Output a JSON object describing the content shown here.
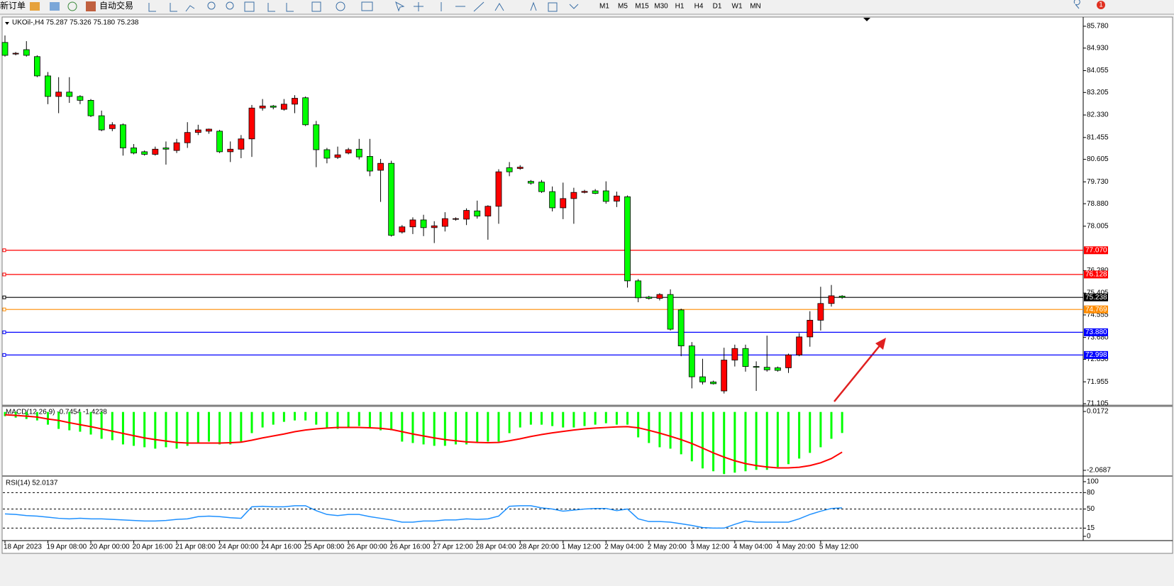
{
  "toolbar": {
    "new_order": "新订单",
    "auto_trading": "自动交易",
    "timeframes": [
      "M1",
      "M5",
      "M15",
      "M30",
      "H1",
      "H4",
      "D1",
      "W1",
      "MN"
    ],
    "badge": "1"
  },
  "chart_data": [
    {
      "type": "candlestick",
      "title": "UKOil-,H4 75.287 75.326 75.180 75.238",
      "categories": [
        "18 Apr 2023",
        null,
        null,
        null,
        "19 Apr 08:00",
        null,
        null,
        null,
        "20 Apr 00:00",
        null,
        null,
        null,
        "20 Apr 16:00",
        null,
        null,
        null,
        "21 Apr 08:00",
        null,
        null,
        null,
        "24 Apr 00:00",
        null,
        null,
        null,
        "24 Apr 16:00",
        null,
        null,
        null,
        "25 Apr 08:00",
        null,
        null,
        null,
        "26 Apr 00:00",
        null,
        null,
        null,
        "26 Apr 16:00",
        null,
        null,
        null,
        "27 Apr 12:00",
        null,
        null,
        null,
        "28 Apr 04:00",
        null,
        null,
        null,
        "28 Apr 20:00",
        null,
        null,
        null,
        "1 May 12:00",
        null,
        null,
        null,
        "2 May 04:00",
        null,
        null,
        null,
        "2 May 20:00",
        null,
        null,
        null,
        "3 May 12:00",
        null,
        null,
        null,
        "4 May 04:00",
        null,
        null,
        null,
        "4 May 20:00",
        null,
        null,
        null,
        "5 May 12:00",
        null,
        null
      ],
      "open": [
        85.15,
        84.7,
        84.87,
        84.6,
        83.85,
        83.05,
        83.22,
        83.05,
        82.9,
        82.3,
        81.8,
        81.95,
        81.05,
        80.9,
        80.8,
        81.05,
        80.95,
        81.25,
        81.65,
        81.7,
        81.7,
        80.9,
        81.0,
        81.4,
        82.6,
        82.68,
        82.55,
        82.75,
        83.0,
        81.95,
        80.98,
        80.68,
        80.85,
        81.0,
        80.72,
        80.18,
        80.45,
        77.78,
        77.98,
        78.25,
        77.95,
        78.0,
        78.28,
        78.28,
        78.6,
        78.4,
        78.78,
        80.28,
        80.25,
        79.75,
        79.72,
        79.35,
        78.72,
        79.08,
        79.32,
        79.38,
        79.38,
        78.98,
        79.15,
        75.88,
        75.25,
        75.2,
        75.35,
        74.75,
        73.35,
        72.15,
        71.95,
        71.6,
        72.8,
        73.25,
        72.55,
        72.52,
        72.5,
        72.5,
        73.0,
        73.7,
        74.35,
        75.0,
        75.287
      ],
      "high": [
        85.42,
        84.78,
        85.2,
        84.65,
        84.0,
        83.8,
        83.8,
        83.1,
        82.95,
        82.5,
        82.05,
        82.0,
        81.2,
        80.95,
        81.1,
        81.3,
        81.4,
        82.05,
        81.95,
        81.8,
        81.75,
        81.3,
        81.55,
        82.72,
        82.95,
        82.72,
        82.95,
        83.1,
        83.05,
        82.1,
        81.05,
        81.1,
        81.05,
        81.4,
        81.4,
        80.62,
        80.55,
        78.05,
        78.35,
        78.45,
        78.2,
        78.55,
        78.35,
        78.7,
        79.0,
        78.82,
        80.22,
        80.5,
        80.38,
        79.8,
        79.8,
        79.55,
        79.7,
        79.5,
        79.42,
        79.45,
        79.75,
        79.35,
        79.2,
        75.95,
        75.3,
        75.4,
        75.55,
        74.8,
        73.5,
        72.85,
        72.0,
        73.28,
        73.4,
        73.4,
        72.75,
        73.75,
        72.55,
        73.05,
        73.85,
        74.7,
        75.65,
        75.72,
        75.326
      ],
      "low": [
        84.6,
        84.65,
        84.6,
        83.8,
        82.75,
        82.4,
        82.8,
        82.75,
        82.25,
        81.7,
        81.7,
        80.75,
        80.8,
        80.75,
        80.75,
        80.4,
        80.85,
        81.05,
        81.55,
        81.6,
        80.85,
        80.5,
        80.65,
        80.7,
        82.5,
        82.55,
        82.5,
        82.4,
        81.9,
        80.3,
        80.45,
        80.62,
        80.8,
        80.6,
        79.95,
        78.95,
        77.6,
        77.72,
        77.7,
        77.62,
        77.35,
        77.8,
        78.22,
        78.05,
        78.3,
        77.48,
        78.1,
        79.95,
        80.2,
        79.62,
        79.3,
        78.58,
        78.28,
        78.1,
        79.28,
        79.25,
        78.88,
        78.75,
        75.62,
        75.05,
        75.15,
        75.12,
        73.95,
        72.95,
        71.7,
        71.85,
        71.85,
        71.5,
        72.55,
        72.35,
        71.6,
        72.35,
        72.35,
        72.3,
        72.95,
        73.32,
        73.95,
        74.88,
        75.18
      ],
      "close": [
        84.65,
        84.73,
        84.65,
        83.85,
        83.05,
        83.22,
        83.05,
        82.9,
        82.3,
        81.75,
        81.95,
        81.05,
        80.85,
        80.8,
        81.0,
        81.0,
        81.25,
        81.65,
        81.75,
        81.78,
        80.9,
        81.0,
        81.4,
        82.6,
        82.68,
        82.63,
        82.75,
        82.98,
        81.95,
        80.98,
        80.65,
        80.78,
        80.98,
        80.7,
        80.15,
        80.45,
        77.65,
        77.98,
        78.25,
        77.95,
        78.02,
        78.3,
        78.3,
        78.62,
        78.4,
        78.78,
        80.12,
        80.12,
        80.3,
        79.68,
        79.35,
        78.72,
        79.08,
        79.32,
        79.36,
        79.28,
        78.97,
        79.18,
        75.88,
        75.22,
        75.2,
        75.35,
        74.0,
        73.35,
        72.15,
        71.95,
        71.88,
        72.8,
        73.25,
        72.55,
        72.52,
        72.42,
        72.4,
        73.0,
        73.7,
        74.35,
        75.0,
        75.3,
        75.238
      ],
      "up_color": "#ff0000",
      "down_color": "#00ff00",
      "ylim": [
        71.022,
        86.111
      ],
      "yticks": [
        {
          "value": 85.78,
          "label": "85.780"
        },
        {
          "value": 84.93,
          "label": "84.930"
        },
        84.055,
        83.205,
        {
          "value": 82.33,
          "label": "82.330"
        },
        81.455,
        80.605,
        {
          "value": 79.73,
          "label": "79.730"
        },
        {
          "value": 78.88,
          "label": "78.880"
        },
        78.005,
        {
          "value": 76.28,
          "label": "76.280"
        },
        75.405,
        74.555,
        {
          "value": 73.68,
          "label": "73.680"
        },
        {
          "value": 72.83,
          "label": "72.830"
        },
        71.955,
        71.105
      ],
      "hlines": [
        {
          "value": 77.07,
          "label": "77.070",
          "color": "#ff0000"
        },
        {
          "value": 76.128,
          "label": "76.128",
          "color": "#ff0000"
        },
        {
          "value": 75.238,
          "label": "75.238",
          "color": "#000000"
        },
        {
          "value": 74.769,
          "label": "74.769",
          "color": "#ff8c00"
        },
        {
          "value": 73.88,
          "label": "73.880",
          "color": "#0000ff"
        },
        {
          "value": 72.998,
          "label": "72.998",
          "color": "#0000ff"
        }
      ]
    },
    {
      "type": "combo",
      "title": "MACD(12,26,9) -0.7454 -1.4238",
      "ylim": [
        -2.245,
        0.193
      ],
      "yticks": [
        0.0172,
        -2.0687
      ],
      "series": [
        {
          "kind": "bar",
          "color": "#00ff00",
          "values": [
            -0.15,
            -0.2,
            -0.25,
            -0.3,
            -0.45,
            -0.6,
            -0.65,
            -0.7,
            -0.8,
            -0.95,
            -1.0,
            -1.15,
            -1.2,
            -1.25,
            -1.3,
            -1.25,
            -1.3,
            -1.2,
            -1.1,
            -1.05,
            -1.15,
            -1.15,
            -1.05,
            -0.75,
            -0.55,
            -0.45,
            -0.35,
            -0.3,
            -0.3,
            -0.45,
            -0.55,
            -0.6,
            -0.55,
            -0.5,
            -0.55,
            -0.65,
            -0.65,
            -1.05,
            -1.1,
            -1.15,
            -1.2,
            -1.2,
            -1.15,
            -1.15,
            -1.1,
            -1.05,
            -1.05,
            -0.75,
            -0.55,
            -0.45,
            -0.45,
            -0.5,
            -0.55,
            -0.55,
            -0.5,
            -0.45,
            -0.4,
            -0.45,
            -0.45,
            -0.9,
            -1.1,
            -1.25,
            -1.3,
            -1.5,
            -1.75,
            -2.0,
            -2.1,
            -2.2,
            -2.15,
            -2.1,
            -2.05,
            -2.05,
            -1.95,
            -1.85,
            -1.65,
            -1.45,
            -1.25,
            -0.95,
            -0.7454
          ]
        },
        {
          "kind": "line",
          "color": "#ff0000",
          "values": [
            -0.1,
            -0.12,
            -0.15,
            -0.18,
            -0.25,
            -0.3,
            -0.38,
            -0.45,
            -0.52,
            -0.6,
            -0.68,
            -0.76,
            -0.84,
            -0.92,
            -0.98,
            -1.03,
            -1.08,
            -1.1,
            -1.1,
            -1.1,
            -1.1,
            -1.09,
            -1.07,
            -1.0,
            -0.92,
            -0.85,
            -0.78,
            -0.7,
            -0.64,
            -0.6,
            -0.57,
            -0.55,
            -0.55,
            -0.55,
            -0.56,
            -0.58,
            -0.62,
            -0.7,
            -0.78,
            -0.85,
            -0.92,
            -0.98,
            -1.02,
            -1.06,
            -1.08,
            -1.09,
            -1.08,
            -1.02,
            -0.95,
            -0.87,
            -0.8,
            -0.74,
            -0.69,
            -0.64,
            -0.6,
            -0.57,
            -0.55,
            -0.53,
            -0.52,
            -0.56,
            -0.65,
            -0.75,
            -0.86,
            -0.98,
            -1.12,
            -1.28,
            -1.45,
            -1.6,
            -1.73,
            -1.83,
            -1.9,
            -1.95,
            -1.98,
            -1.98,
            -1.96,
            -1.9,
            -1.8,
            -1.65,
            -1.4238
          ]
        }
      ]
    },
    {
      "type": "line",
      "title": "RSI(14) 52.0137",
      "ylim": [
        -7.8,
        109
      ],
      "yticks": [
        100,
        80,
        50,
        15,
        0
      ],
      "levels": [
        80,
        50,
        15
      ],
      "color": "#1e90ff",
      "values": [
        41,
        40,
        38,
        37,
        35,
        33,
        32,
        33,
        32,
        32,
        31,
        30,
        29,
        28,
        28,
        29,
        31,
        32,
        36,
        37,
        36,
        34,
        33,
        54,
        55,
        54,
        54,
        56,
        56,
        47,
        40,
        38,
        40,
        40,
        36,
        33,
        30,
        26,
        26,
        28,
        28,
        30,
        30,
        32,
        31,
        32,
        37,
        55,
        56,
        56,
        52,
        50,
        46,
        48,
        50,
        51,
        51,
        47,
        50,
        32,
        27,
        27,
        26,
        23,
        20,
        16,
        15,
        15,
        22,
        28,
        26,
        26,
        26,
        26,
        32,
        40,
        46,
        51,
        52.0137
      ]
    }
  ]
}
